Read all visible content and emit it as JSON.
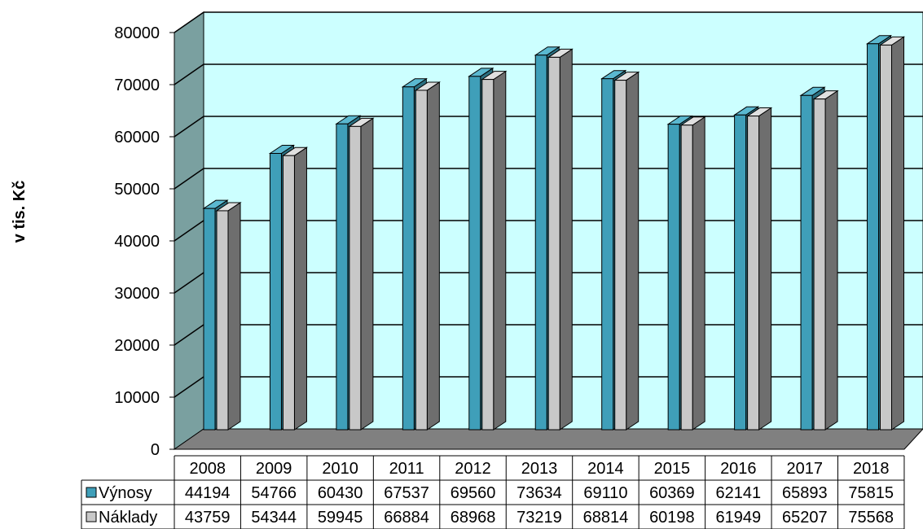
{
  "chart_data": {
    "type": "bar",
    "ylabel": "v tis. Kč",
    "ylim": [
      0,
      80000
    ],
    "yticks": [
      "0",
      "10000",
      "20000",
      "30000",
      "40000",
      "50000",
      "60000",
      "70000",
      "80000"
    ],
    "categories": [
      "2008",
      "2009",
      "2010",
      "2011",
      "2012",
      "2013",
      "2014",
      "2015",
      "2016",
      "2017",
      "2018"
    ],
    "series": [
      {
        "name": "Výnosy",
        "values": [
          44194,
          54766,
          60430,
          67537,
          69560,
          73634,
          69110,
          60369,
          62141,
          65893,
          75815
        ]
      },
      {
        "name": "Náklady",
        "values": [
          43759,
          54344,
          59945,
          66884,
          68968,
          73219,
          68814,
          60198,
          61949,
          65207,
          75568
        ]
      }
    ],
    "grid": true,
    "legend": "data-table",
    "colors": {
      "plot_background": "#ccffff",
      "side_wall": "#7aa0a0",
      "floor": "#808080",
      "series_1": "#3f9fb9",
      "series_2": "#c8c8c8"
    }
  }
}
